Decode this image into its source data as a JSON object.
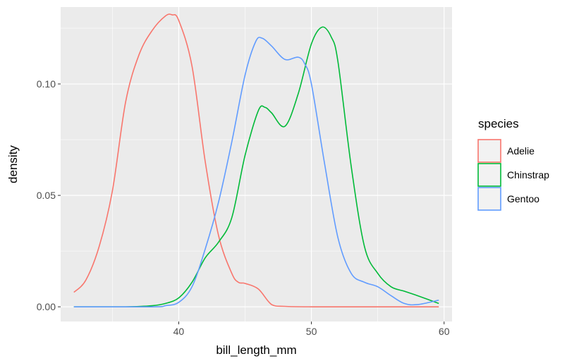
{
  "chart_data": {
    "type": "line",
    "title": "",
    "xlabel": "bill_length_mm",
    "ylabel": "density",
    "xlim": [
      31.1,
      60.6
    ],
    "ylim": [
      -0.0066,
      0.1345
    ],
    "x_ticks": [
      40,
      50,
      60
    ],
    "x_tick_labels": [
      "40",
      "50",
      "60"
    ],
    "y_ticks": [
      0.0,
      0.05,
      0.1
    ],
    "y_tick_labels": [
      "0.00",
      "0.05",
      "0.10"
    ],
    "grid": true,
    "legend": {
      "title": "species",
      "position": "right"
    },
    "series": [
      {
        "name": "Adelie",
        "color": "#F8766D",
        "x": [
          32.1,
          33,
          34,
          35,
          36,
          37,
          38,
          39,
          39.5,
          40,
          41,
          42,
          43,
          44,
          44.5,
          45,
          46,
          47,
          48,
          50,
          55,
          59.6
        ],
        "y": [
          0.0065,
          0.012,
          0.027,
          0.052,
          0.092,
          0.113,
          0.124,
          0.1305,
          0.131,
          0.1285,
          0.108,
          0.065,
          0.032,
          0.015,
          0.011,
          0.0105,
          0.008,
          0.001,
          0.0002,
          0.0,
          0.0,
          0.0
        ]
      },
      {
        "name": "Chinstrap",
        "color": "#00BA38",
        "x": [
          32.1,
          36,
          38,
          39,
          40,
          41,
          42,
          43,
          44,
          45,
          46,
          46.5,
          47,
          48,
          49,
          50,
          50.8,
          51.5,
          52,
          53,
          54,
          55,
          56,
          57,
          58,
          59.6
        ],
        "y": [
          0.0,
          0.0,
          0.0005,
          0.0015,
          0.004,
          0.011,
          0.022,
          0.029,
          0.04,
          0.068,
          0.088,
          0.0895,
          0.087,
          0.081,
          0.0955,
          0.118,
          0.1255,
          0.121,
          0.11,
          0.063,
          0.027,
          0.015,
          0.009,
          0.007,
          0.005,
          0.0015
        ]
      },
      {
        "name": "Gentoo",
        "color": "#619CFF",
        "x": [
          32.1,
          38,
          39,
          40,
          41,
          42,
          43,
          44,
          45,
          45.8,
          46.3,
          47,
          48,
          49,
          49.5,
          50,
          51,
          52,
          53,
          54,
          55,
          56,
          57,
          58,
          59.6
        ],
        "y": [
          0.0,
          0.0,
          0.0005,
          0.002,
          0.009,
          0.026,
          0.047,
          0.074,
          0.104,
          0.119,
          0.1205,
          0.117,
          0.111,
          0.112,
          0.109,
          0.1,
          0.064,
          0.031,
          0.015,
          0.011,
          0.009,
          0.005,
          0.0015,
          0.001,
          0.003
        ]
      }
    ]
  }
}
